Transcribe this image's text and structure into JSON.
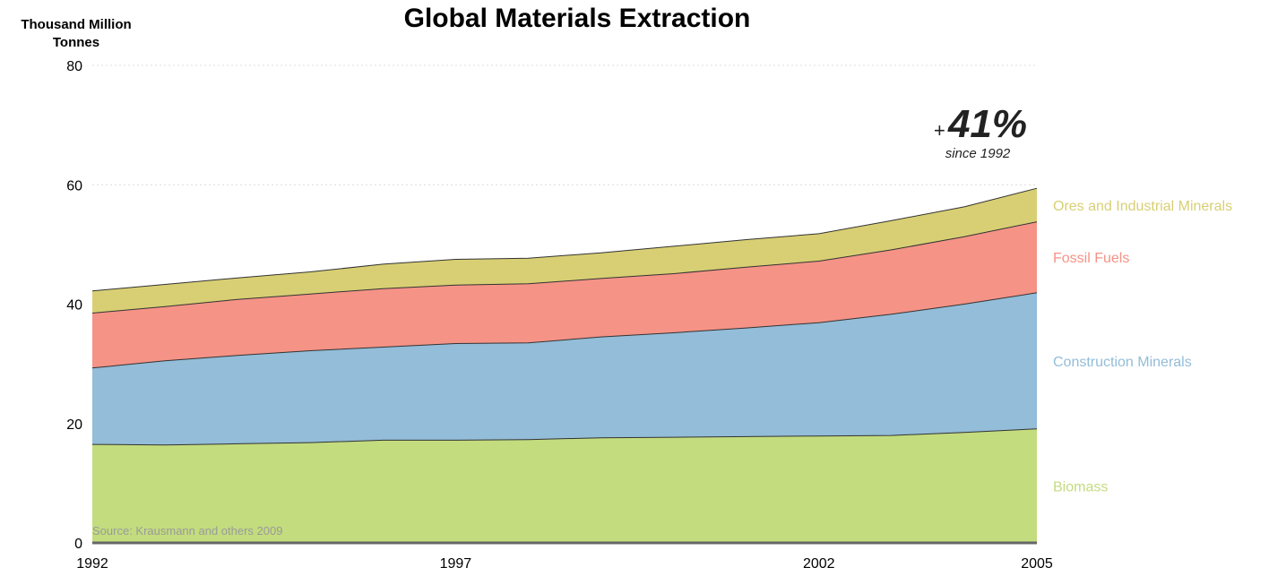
{
  "chart_data": {
    "type": "area",
    "stacked": true,
    "title": "Global Materials Extraction",
    "ylabel_line1": "Thousand Million",
    "ylabel_line2": "Tonnes",
    "xlabel": "",
    "ylim": [
      0,
      80
    ],
    "xlim": [
      1992,
      2005
    ],
    "yticks": [
      0,
      20,
      40,
      60,
      80
    ],
    "xticks": [
      1992,
      1997,
      2002,
      2005
    ],
    "grid": "horizontal dotted",
    "legend_placement": "right, labels beside series",
    "x": [
      1992,
      1993,
      1994,
      1995,
      1996,
      1997,
      1998,
      1999,
      2000,
      2001,
      2002,
      2003,
      2004,
      2005
    ],
    "series": [
      {
        "name": "Biomass",
        "color": "#c3dc7e",
        "values": [
          16.5,
          16.4,
          16.6,
          16.8,
          17.2,
          17.2,
          17.3,
          17.6,
          17.7,
          17.8,
          17.9,
          18.0,
          18.5,
          19.1
        ]
      },
      {
        "name": "Construction Minerals",
        "color": "#93bdd8",
        "values": [
          12.8,
          14.1,
          14.8,
          15.4,
          15.6,
          16.2,
          16.2,
          16.9,
          17.5,
          18.2,
          19.0,
          20.3,
          21.5,
          22.8
        ]
      },
      {
        "name": "Fossil Fuels",
        "color": "#f59386",
        "values": [
          9.2,
          9.1,
          9.4,
          9.5,
          9.8,
          9.8,
          9.9,
          9.8,
          9.9,
          10.2,
          10.3,
          10.8,
          11.3,
          11.9
        ]
      },
      {
        "name": "Ores and Industrial Minerals",
        "color": "#d8cf74",
        "values": [
          3.7,
          3.7,
          3.6,
          3.7,
          4.1,
          4.3,
          4.3,
          4.3,
          4.6,
          4.6,
          4.6,
          4.9,
          5.0,
          5.6
        ]
      }
    ],
    "annotation": {
      "sign": "+",
      "value": "41%",
      "subtitle": "since 1992"
    },
    "source": "Source: Krausmann and others 2009"
  }
}
